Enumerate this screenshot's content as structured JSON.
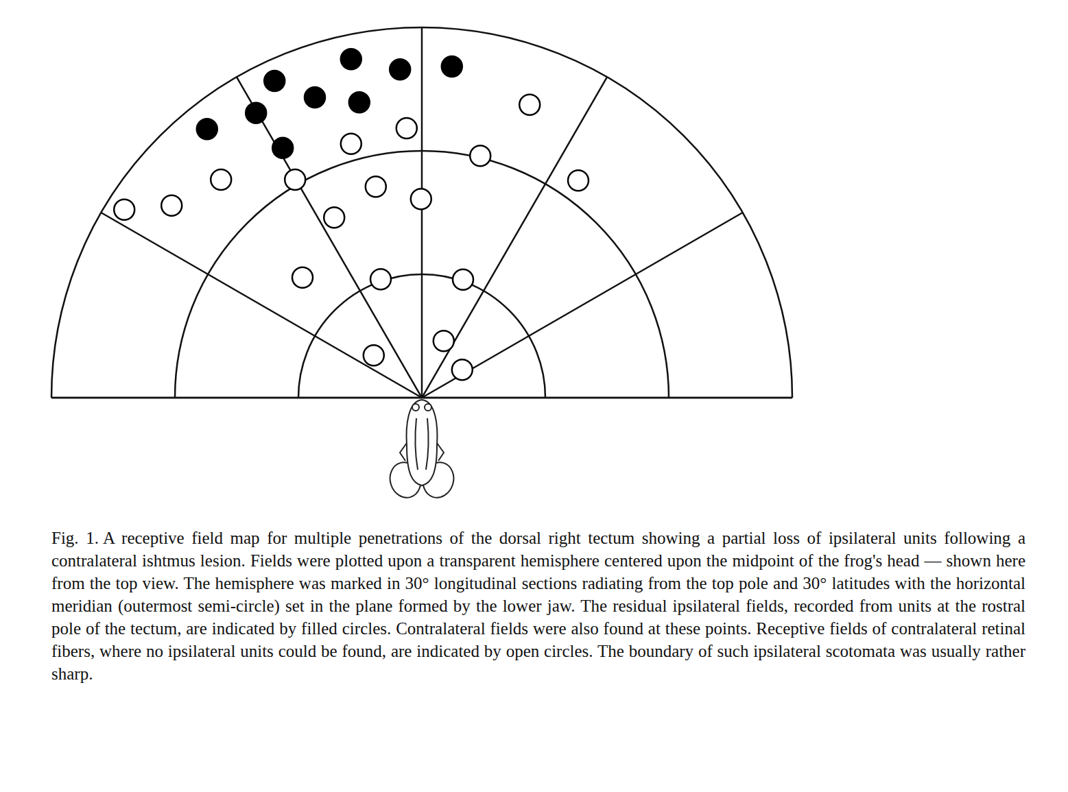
{
  "chart_data": {
    "type": "scatter",
    "xlim": [
      -90,
      90
    ],
    "ylim": [
      0,
      90
    ],
    "tick_labels": false,
    "grid": true,
    "circle_radii": [
      30,
      60,
      90
    ],
    "spoke_angles": [
      0,
      30,
      60,
      90,
      120,
      150,
      180
    ],
    "series": [
      {
        "marker": "filled",
        "color": "#000000",
        "x": [
          -52.2,
          -40.3,
          -35.8,
          -33.8,
          -26,
          -17.2,
          -15.2,
          -5.3,
          7.3
        ],
        "y": [
          65.3,
          69.2,
          77,
          60.7,
          73,
          82.3,
          71.8,
          79.8,
          80.5
        ]
      },
      {
        "marker": "open",
        "color": "#000000",
        "x": [
          -72.3,
          -60.8,
          -48.8,
          -30.8,
          -17.2,
          -3.7,
          26.2,
          14.2,
          38,
          -11.2,
          -0.2,
          -21.3,
          -29,
          -10,
          10,
          5.3,
          -11.7,
          9.8
        ],
        "y": [
          45.7,
          46.7,
          53,
          53,
          61.7,
          65.5,
          71.2,
          58.8,
          52.8,
          51.3,
          48.3,
          43.8,
          29.2,
          28.8,
          28.7,
          13.8,
          10.3,
          6.8
        ]
      }
    ]
  },
  "caption": {
    "label": "Fig. 1.",
    "text": "A receptive field map for multiple penetrations of the dorsal right tectum showing a partial loss of ipsilateral units following a contralateral ishtmus lesion. Fields were plotted upon a transparent hemisphere centered upon the midpoint of the frog's head — shown here from the top view. The hemisphere was marked in 30° longitudinal sections radiating from the top pole and 30° latitudes with the horizontal meridian (outermost semi-circle) set in the plane formed by the lower jaw. The residual ipsilateral fields, recorded from units at the rostral pole of the tectum, are indicated by filled circles. Contralateral fields were also found at these points. Receptive fields of contralateral retinal fibers, where no ipsilateral units could be found, are indicated by open circles. The boundary of such ipsilateral scotomata was usually rather sharp."
  }
}
